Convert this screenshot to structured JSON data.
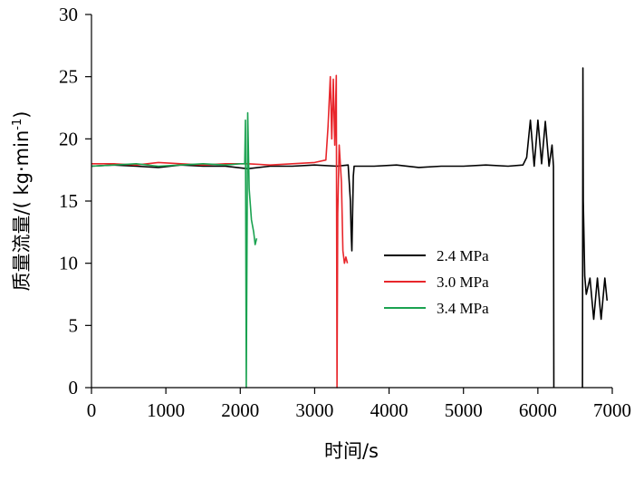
{
  "chart_data": {
    "type": "line",
    "xlabel": "时间/s",
    "ylabel_main": "质量流量/( kg·min",
    "ylabel_sup": "-1",
    "ylabel_close": ")",
    "xlim": [
      0,
      7000
    ],
    "ylim": [
      0,
      30
    ],
    "xticks": [
      "0",
      "1000",
      "2000",
      "3000",
      "4000",
      "5000",
      "6000",
      "7000"
    ],
    "yticks": [
      "0",
      "5",
      "10",
      "15",
      "20",
      "25",
      "30"
    ],
    "grid": false,
    "legend_position": "right",
    "series": [
      {
        "name": "2.4 MPa",
        "color": "#000000",
        "segments": [
          [
            [
              0,
              17.8
            ],
            [
              300,
              17.9
            ],
            [
              600,
              17.8
            ],
            [
              900,
              17.7
            ],
            [
              1200,
              17.9
            ],
            [
              1500,
              17.8
            ],
            [
              1800,
              17.8
            ],
            [
              2100,
              17.6
            ],
            [
              2400,
              17.8
            ],
            [
              2700,
              17.8
            ],
            [
              3000,
              17.9
            ],
            [
              3300,
              17.8
            ],
            [
              3450,
              17.9
            ],
            [
              3480,
              15.0
            ],
            [
              3490,
              12.5
            ],
            [
              3500,
              11.0
            ],
            [
              3510,
              14.0
            ],
            [
              3520,
              17.0
            ],
            [
              3530,
              17.8
            ],
            [
              3800,
              17.8
            ],
            [
              4100,
              17.9
            ],
            [
              4400,
              17.7
            ],
            [
              4700,
              17.8
            ],
            [
              5000,
              17.8
            ],
            [
              5300,
              17.9
            ],
            [
              5600,
              17.8
            ],
            [
              5800,
              17.9
            ],
            [
              5850,
              18.5
            ],
            [
              5900,
              21.5
            ],
            [
              5950,
              17.8
            ],
            [
              6000,
              21.5
            ],
            [
              6050,
              18.0
            ],
            [
              6100,
              21.4
            ],
            [
              6150,
              17.8
            ],
            [
              6190,
              19.5
            ],
            [
              6210,
              17.8
            ],
            [
              6215,
              0
            ]
          ],
          [
            [
              6600,
              0
            ],
            [
              6605,
              25.7
            ],
            [
              6610,
              15.0
            ],
            [
              6630,
              9.0
            ],
            [
              6650,
              7.5
            ],
            [
              6700,
              8.8
            ],
            [
              6750,
              5.5
            ],
            [
              6800,
              8.8
            ],
            [
              6850,
              5.5
            ],
            [
              6900,
              8.8
            ],
            [
              6930,
              7.0
            ]
          ]
        ]
      },
      {
        "name": "3.0 MPa",
        "color": "#e8262b",
        "segments": [
          [
            [
              0,
              18.0
            ],
            [
              300,
              18.0
            ],
            [
              600,
              17.9
            ],
            [
              900,
              18.1
            ],
            [
              1200,
              18.0
            ],
            [
              1500,
              17.9
            ],
            [
              1800,
              18.0
            ],
            [
              2100,
              18.0
            ],
            [
              2400,
              17.9
            ],
            [
              2700,
              18.0
            ],
            [
              3000,
              18.1
            ],
            [
              3150,
              18.3
            ],
            [
              3180,
              21.0
            ],
            [
              3210,
              25.0
            ],
            [
              3230,
              20.0
            ],
            [
              3250,
              24.8
            ],
            [
              3270,
              19.5
            ],
            [
              3290,
              25.1
            ],
            [
              3300,
              0
            ],
            [
              3310,
              14.0
            ],
            [
              3330,
              19.5
            ],
            [
              3360,
              16.5
            ],
            [
              3380,
              11.0
            ],
            [
              3400,
              10.0
            ],
            [
              3420,
              10.5
            ],
            [
              3440,
              10.0
            ]
          ]
        ]
      },
      {
        "name": "3.4 MPa",
        "color": "#1aa250",
        "segments": [
          [
            [
              0,
              17.8
            ],
            [
              300,
              17.9
            ],
            [
              600,
              18.0
            ],
            [
              900,
              17.8
            ],
            [
              1200,
              17.9
            ],
            [
              1500,
              18.0
            ],
            [
              1800,
              17.9
            ],
            [
              2000,
              18.0
            ],
            [
              2060,
              18.0
            ],
            [
              2070,
              21.5
            ],
            [
              2080,
              0
            ],
            [
              2100,
              22.1
            ],
            [
              2120,
              16.0
            ],
            [
              2150,
              13.5
            ],
            [
              2180,
              12.5
            ],
            [
              2200,
              11.5
            ],
            [
              2220,
              12.0
            ]
          ]
        ]
      }
    ]
  }
}
